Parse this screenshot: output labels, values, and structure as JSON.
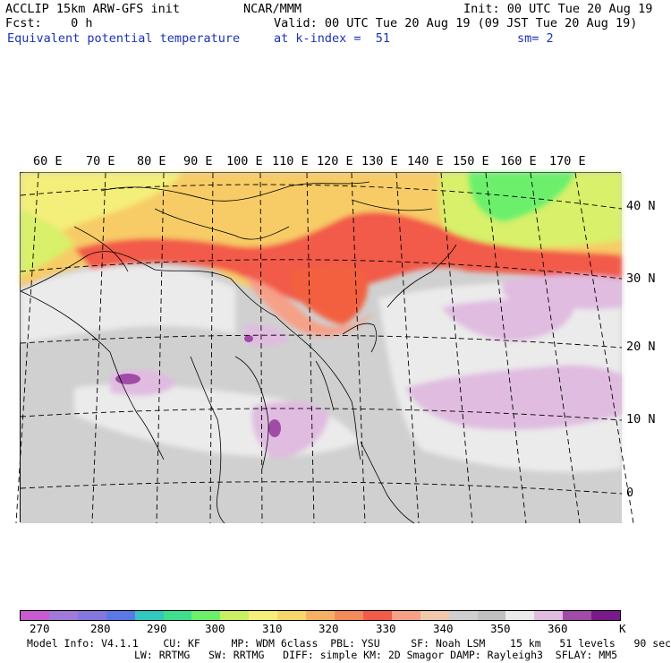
{
  "header": {
    "title": "ACCLIP 15km ARW-GFS init",
    "fcst": "Fcst:    0 h",
    "field": "Equivalent potential temperature",
    "org": "NCAR/MMM",
    "init": "Init: 00 UTC Tue 20 Aug 19",
    "valid": "Valid: 00 UTC Tue 20 Aug 19 (09 JST Tue 20 Aug 19)",
    "level": "at k-index =  51",
    "smooth": "sm= 2"
  },
  "map": {
    "lon_labels": [
      "60 E",
      "70 E",
      "80 E",
      "90 E",
      "100 E",
      "110 E",
      "120 E",
      "130 E",
      "140 E",
      "150 E",
      "160 E",
      "170 E"
    ],
    "lat_labels": [
      "40 N",
      "30 N",
      "20 N",
      "10 N",
      "0"
    ]
  },
  "colorbar": {
    "colors": [
      "#c85ad2",
      "#a07ad8",
      "#8478e0",
      "#5a78e6",
      "#30c8c0",
      "#3ee08e",
      "#6cf06c",
      "#c8f060",
      "#f6f07a",
      "#f7d66a",
      "#f7b062",
      "#f48a5a",
      "#f25a4a",
      "#f6a088",
      "#f2c8aa",
      "#cfcfcf",
      "#c0c0c0",
      "#ebebeb",
      "#e0bce0",
      "#a04ca6",
      "#7a1a8a"
    ],
    "labels": [
      "270",
      "280",
      "290",
      "300",
      "310",
      "320",
      "330",
      "340",
      "350",
      "360",
      "K"
    ]
  },
  "footer": {
    "line1": "Model Info: V4.1.1    CU: KF     MP: WDM 6class  PBL: YSU     SF: Noah LSM    15 km   51 levels   90 sec",
    "line2": "LW: RRTMG   SW: RRTMG   DIFF: simple KM: 2D Smagor DAMP: Rayleigh3  SFLAY: MM5"
  }
}
